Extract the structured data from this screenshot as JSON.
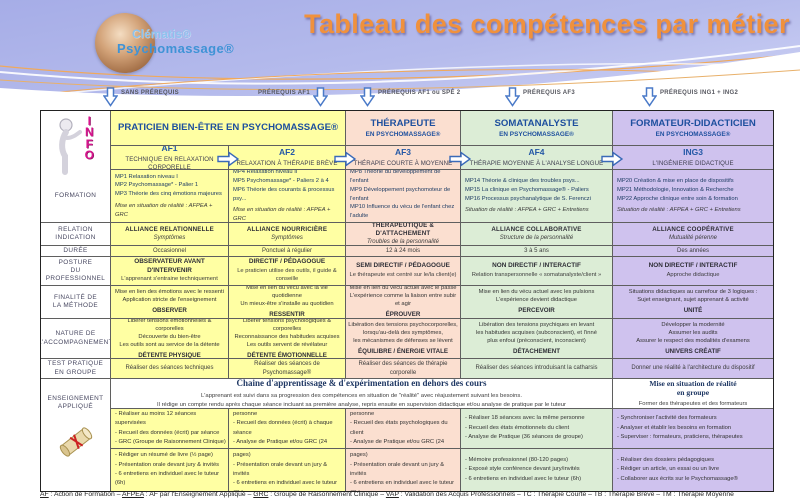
{
  "title": "Tableau des compétences par métier",
  "logo": {
    "brand1": "Clématis®",
    "brand2": "Psychomassage®"
  },
  "info_letters": [
    "I",
    "N",
    "F",
    "O"
  ],
  "prereq": [
    {
      "label": "SANS PRÉREQUIS"
    },
    {
      "label": "PRÉREQUIS AF1"
    },
    {
      "label": "PRÉREQUIS AF1 ou SPÉ 2"
    },
    {
      "label": "PRÉREQUIS AF3"
    },
    {
      "label": "PRÉREQUIS ING1 + ING2"
    }
  ],
  "professions": {
    "praticien": {
      "title": "PRATICIEN BIEN-ÊTRE EN PSYCHOMASSAGE®"
    },
    "therapeute": {
      "title": "THÉRAPEUTE",
      "subtitle": "EN PSYCHOMASSAGE®"
    },
    "somatanalyste": {
      "title": "SOMATANALYSTE",
      "subtitle": "EN PSYCHOMASSAGE®"
    },
    "formateur": {
      "title": "FORMATEUR-DIDACTICIEN",
      "subtitle": "EN PSYCHOMASSAGE®"
    }
  },
  "row_labels": {
    "formation": "FORMATION",
    "relation": [
      "RELATION",
      "INDICATION"
    ],
    "duree": "DURÉE",
    "posture": [
      "POSTURE",
      "DU",
      "PROFESSIONNEL"
    ],
    "finalite": [
      "FINALITÉ DE",
      "LA MÉTHODE"
    ],
    "nature": [
      "NATURE DE",
      "L'ACCOMPAGNEMENT"
    ],
    "test": [
      "TEST PRATIQUE",
      "EN GROUPE"
    ],
    "enseignement": [
      "ENSEIGNEMENT",
      "APPLIQUÉ"
    ]
  },
  "afs": {
    "af1": {
      "name": "AF1",
      "subtitle": "TECHNIQUE EN RELAXATION CORPORELLE",
      "formation": [
        "MP1 Relaxation niveau I",
        "MP2 Psychomassage* - Palier 1",
        "MP3 Théorie des cinq émotions majeures",
        "Mise en situation de réalité : AFPEA + GRC"
      ],
      "relation": [
        "ALLIANCE RELATIONNELLE",
        "Symptômes"
      ],
      "duree": "Occasionnel",
      "posture": [
        "OBSERVATEUR AVANT D'INTERVENIR",
        "L'apprenant s'entraine techniquement"
      ],
      "finalite": [
        "Mise en lien des émotions avec le ressenti",
        "Application stricte de l'enseignement",
        "OBSERVER"
      ],
      "nature": [
        "Libérer tensions émotionnelles & corporelles",
        "Découverte du bien-être",
        "Les outils sont au service de la détente",
        "DÉTENTE PHYSIQUE"
      ],
      "test": "Réaliser des séances techniques",
      "bullets1": [
        "- Réaliser au moins 12 séances supervisées",
        "- Recueil des données (écrit) par séance",
        "- GRC (Groupe de Raisonnement Clinique)"
      ],
      "bullets2": [
        "- Rédiger un résumé de livre (½ page)",
        "- Présentation orale devant jury & invités",
        "- 6 entretiens en individuel avec le tuteur (6h)"
      ]
    },
    "af2": {
      "name": "AF2",
      "subtitle": "RELAXATION À THÉRAPIE BRÈVE",
      "formation": [
        "MP4 Relaxation niveau II",
        "MP5 Psychomassage* - Paliers 2 à 4",
        "MP6 Théorie des courants & processus psy...",
        "Mise en situation de réalité : AFPEA + GRC"
      ],
      "relation": [
        "ALLIANCE NOURRICIÈRE",
        "Symptômes"
      ],
      "duree": "Ponctuel à régulier",
      "posture": [
        "DIRECTIF / PÉDAGOGUE",
        "Le praticien utilise des outils, il guide & conseille"
      ],
      "finalite": [
        "Mise en lien du vécu avec la vie quotidienne",
        "Un mieux-être s'installe au quotidien",
        "RESSENTIR"
      ],
      "nature": [
        "Libérer tensions psychologiques & corporelles",
        "Reconnaissance des habitudes acquises",
        "Les outils servent de révélateur",
        "DÉTENTE ÉMOTIONNELLE"
      ],
      "test": "Réaliser des séances de Psychomassage®",
      "bullets1": [
        "- Mener 15 séances avec la même personne",
        "- Recueil des données (écrit) à chaque séance",
        "- Analyse de Pratique et/ou GRC (24 séances)"
      ],
      "bullets2": [
        "- Rédiger un dossier technique (25-40 pages)",
        "- Présentation orale devant un jury & invités",
        "- 6 entretiens en individuel avec le tuteur (6h)"
      ]
    },
    "af3": {
      "name": "AF3",
      "subtitle": "THÉRAPIE COURTE À MOYENNE",
      "formation": [
        "MP7 La régression en Psychomassage* - Palier 5",
        "MP8 Théorie du développement de l'enfant",
        "MP9 Développement psychomoteur de l'enfant",
        "MP10 Influence du vécu de l'enfant chez l'adulte",
        "Mise en situation de réalité : AFPEA + GRC"
      ],
      "relation": [
        "THÉRAPEUTIQUE & D'ATTACHEMENT",
        "Troubles de la personnalité"
      ],
      "duree": "12 à 24 mois",
      "posture": [
        "SEMI DIRECTIF / PÉDAGOGUE",
        "Le thérapeute est centré sur le/la client(e)"
      ],
      "finalite": [
        "Mise en lien du vécu actuel avec le passé",
        "L'expérience comme la liaison entre subir et agir",
        "ÉPROUVER"
      ],
      "nature": [
        "Libération des tensions psychocorporelles,",
        "lorsqu'au-delà des symptômes,",
        "les mécanismes de défenses se lèvent",
        "ÉQUILIBRE / ÉNERGIE VITALE"
      ],
      "test": "Réaliser des séances de thérapie corporelle",
      "bullets1": [
        "- Mener 18 séances avec la même personne",
        "- Recueil des états psychologiques du client",
        "- Analyse de Pratique et/ou GRC (24 séances)"
      ],
      "bullets2": [
        "- Rédiger un dossier thématique (40-60 pages)",
        "- Présentation orale devant un jury & invités",
        "- 6 entretiens en individuel avec le tuteur (6h)"
      ]
    },
    "af4": {
      "name": "AF4",
      "subtitle": "THÉRAPIE MOYENNE À L'ANALYSE LONGUE",
      "formation": [
        "MP14 Théorie & clinique des troubles psys...",
        "MP15 La clinique en Psychomassage® - Paliers",
        "MP16 Processus psychanalytique de S. Ferenczi",
        "Situation de réalité : AFPEA + GRC + Entretiens"
      ],
      "relation": [
        "ALLIANCE COLLABORATIVE",
        "Structure de la personnalité"
      ],
      "duree": "3 à 5 ans",
      "posture": [
        "NON DIRECTIF / INTERACTIF",
        "Relation transpersonnelle « somatanalyste/client »"
      ],
      "finalite": [
        "Mise en lien du vécu actuel avec les pulsions",
        "L'expérience devient didactique",
        "PERCEVOIR"
      ],
      "nature": [
        "Libération des tensions psychiques en levant",
        "les habitudes acquises (subconscient), et l'inné",
        "plus enfoui (préconscient, inconscient)",
        "DÉTACHEMENT"
      ],
      "test": "Réaliser des séances introduisant la catharsis",
      "bullets1": [
        "- Réaliser 18 séances avec la même personne",
        "- Recueil des états émotionnels du client",
        "- Analyse de Pratique (36 séances de groupe)"
      ],
      "bullets2": [
        "- Mémoire professionnel (80-120 pages)",
        "- Exposé style conférence devant jury/invités",
        "- 6 entretiens en individuel avec le tuteur (6h)"
      ]
    },
    "ing3": {
      "name": "ING3",
      "subtitle": "L'INGÉNIERIE DIDACTIQUE",
      "formation": [
        "MP20 Création & mise en place de dispositifs",
        "MP21 Méthodologie, Innovation & Recherche",
        "MP22 Approche clinique entre soin & formation",
        "Situation de réalité : AFPEA + GRC + Entretiens"
      ],
      "relation": [
        "ALLIANCE COOPÉRATIVE",
        "Mutualité pérenne"
      ],
      "duree": "Des années",
      "posture": [
        "NON DIRECTIF / INTERACTIF",
        "Approche didactique"
      ],
      "finalite": [
        "Situations didactiques au carrefour de 3 logiques :",
        "Sujet enseignant, sujet apprenant & activité",
        "UNITÉ"
      ],
      "nature": [
        "Développer la modernité",
        "Assumer les audits",
        "Assurer le respect des modalités d'examens",
        "UNIVERS CRÉATIF"
      ],
      "test": "Donner une réalité à l'architecture du dispositif",
      "bullets1": [
        "- Synchroniser l'activité des formateurs",
        "- Analyser et établir les besoins en formation",
        "- Superviser : formateurs, praticiens, thérapeutes"
      ],
      "bullets2": [
        "- Réaliser des dossiers pédagogiques",
        "- Rédiger un article, un essai ou un livre",
        "- Collaborer aux écrits sur le Psychomassage®"
      ]
    }
  },
  "enseignement": {
    "merged": [
      "Chaine d'apprentissage & d'expérimentation en dehors des cours",
      "L'apprenant est suivi dans sa progression des compétences en situation de \"réalité\" avec réajustement suivant les besoins.",
      "Il rédige un compte rendu après chaque séance incluant sa première analyse, repris ensuite en supervision didactique et/ou analyse de pratique par le tuteur"
    ],
    "ing3": [
      "Mise en situation de réalité",
      "en groupe",
      "Former des thérapeutes et des formateurs"
    ]
  },
  "footer": {
    "parts": [
      {
        "abbr": "AF",
        "text": " : Action de Formation –  "
      },
      {
        "abbr": "AFPEA",
        "text": " : AF par l'Enseignement Appliqué – "
      },
      {
        "abbr": "GRC",
        "text": " : Groupe de Raisonnement Clinique – "
      },
      {
        "abbr": "VAP",
        "text": " : Validation des Acquis Professionnels – TC : Thérapie Courte – TB : Thérapie Brève – TM : Thérapie Moyenne"
      }
    ]
  },
  "colors": {
    "title_orange": "#f0913d",
    "header_lavender": "#a6ade7",
    "column_yellow": "#ffffa3",
    "column_salmon": "#fbdfd0",
    "column_green": "#dcedd6",
    "column_purple": "#cfc2ee",
    "heading_blue": "#1d4f9e",
    "info_pink": "#d6158d",
    "serif_blue": "#1f3864"
  }
}
